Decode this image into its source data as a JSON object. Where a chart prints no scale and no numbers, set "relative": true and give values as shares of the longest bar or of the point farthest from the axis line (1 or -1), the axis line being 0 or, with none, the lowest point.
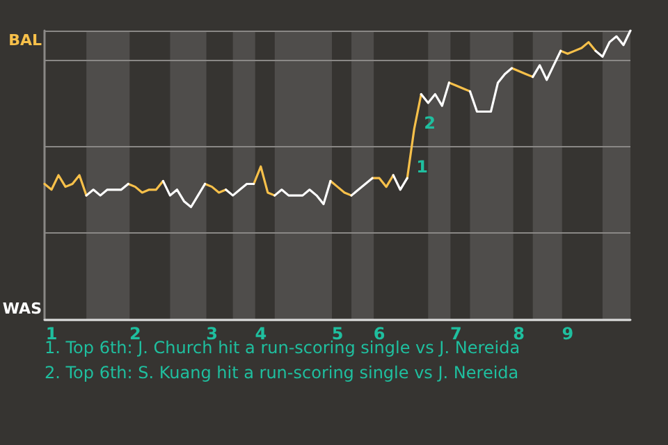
{
  "chart_data": {
    "type": "line",
    "relative": true,
    "grid": "y",
    "marker": "none",
    "line_style": "solid",
    "categories": [
      null,
      "1",
      null,
      null,
      null,
      null,
      null,
      null,
      null,
      null,
      null,
      null,
      null,
      "2",
      null,
      null,
      null,
      null,
      null,
      null,
      null,
      null,
      null,
      null,
      "3",
      null,
      null,
      null,
      null,
      null,
      null,
      "4",
      null,
      null,
      null,
      null,
      null,
      null,
      null,
      null,
      null,
      null,
      "5",
      null,
      null,
      null,
      null,
      null,
      "6",
      null,
      null,
      null,
      null,
      null,
      null,
      null,
      null,
      null,
      null,
      "7",
      null,
      null,
      null,
      null,
      null,
      null,
      null,
      null,
      "8",
      null,
      null,
      null,
      null,
      null,
      null,
      "9",
      null,
      null,
      null,
      null,
      null,
      null,
      null,
      null,
      null
    ],
    "series": [
      {
        "color": "#f7c04a",
        "values": [
          0.47,
          0.45,
          0.5,
          0.46,
          0.47,
          0.5,
          0.43,
          null,
          null,
          null,
          null,
          null,
          0.47,
          0.46,
          0.44,
          0.45,
          0.45,
          0.48,
          null,
          null,
          null,
          null,
          null,
          0.47,
          0.46,
          0.44,
          0.45,
          null,
          null,
          null,
          0.47,
          0.53,
          0.44,
          0.43,
          null,
          null,
          null,
          null,
          null,
          null,
          null,
          0.48,
          0.46,
          0.44,
          0.43,
          null,
          null,
          0.49,
          0.49,
          0.46,
          0.5,
          null,
          0.49,
          0.66,
          0.78,
          null,
          null,
          null,
          0.82,
          0.81,
          0.8,
          0.79,
          null,
          null,
          null,
          null,
          null,
          0.87,
          0.86,
          0.85,
          0.84,
          null,
          null,
          null,
          0.93,
          0.92,
          0.93,
          0.94,
          0.96,
          0.93,
          null,
          null,
          null,
          null,
          null
        ]
      },
      {
        "color": "#ffffff",
        "values": [
          null,
          null,
          null,
          null,
          null,
          null,
          0.43,
          0.45,
          0.43,
          0.45,
          0.45,
          0.45,
          0.47,
          null,
          null,
          null,
          null,
          0.48,
          0.43,
          0.45,
          0.41,
          0.39,
          0.43,
          0.47,
          null,
          null,
          0.45,
          0.43,
          0.45,
          0.47,
          0.47,
          null,
          null,
          0.43,
          0.45,
          0.43,
          0.43,
          0.43,
          0.45,
          0.43,
          0.4,
          0.48,
          null,
          null,
          0.43,
          0.45,
          0.47,
          0.49,
          null,
          null,
          0.5,
          0.45,
          0.49,
          null,
          0.78,
          0.75,
          0.78,
          0.74,
          0.82,
          null,
          null,
          0.79,
          0.72,
          0.72,
          0.72,
          0.82,
          0.85,
          0.87,
          null,
          null,
          0.84,
          0.88,
          0.83,
          0.88,
          0.93,
          null,
          null,
          null,
          null,
          0.93,
          0.91,
          0.96,
          0.98,
          0.95,
          1.0
        ]
      }
    ],
    "annotations": [
      "BAL",
      "WAS",
      "1",
      "2",
      "1. Top 6th: J. Church hit a run-scoring single vs J. Nereida",
      "2. Top 6th: S. Kuang hit a run-scoring single vs J. Nereida"
    ]
  }
}
